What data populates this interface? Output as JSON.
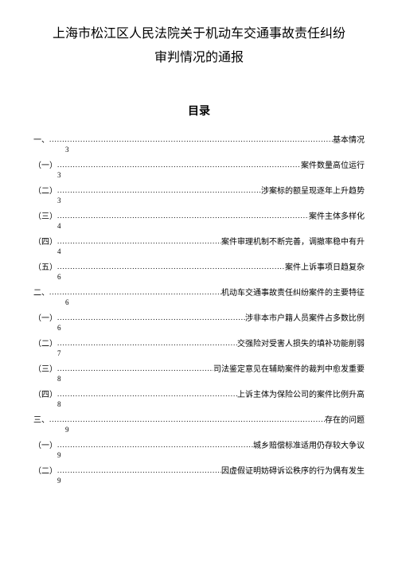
{
  "title_line1": "上海市松江区人民法院关于机动车交通事故责任纠纷",
  "title_line2": "审判情况的通报",
  "toc_heading": "目录",
  "sections": [
    {
      "num": "一、",
      "label": "基本情况",
      "page": "3",
      "level": 1
    },
    {
      "num": "（一）",
      "label": "案件数量高位运行",
      "page": "3",
      "level": 2
    },
    {
      "num": "（二）",
      "label": "涉案标的额呈现逐年上升趋势",
      "page": "3",
      "level": 2
    },
    {
      "num": "（三）",
      "label": "案件主体多样化",
      "page": "4",
      "level": 2
    },
    {
      "num": "（四）",
      "label": "案件审理机制不断完善，调撤率稳中有升",
      "page": "4",
      "level": 2
    },
    {
      "num": "（五）",
      "label": "案件上诉事项日趋复杂",
      "page": "6",
      "level": 2
    },
    {
      "num": "二、",
      "label": "机动车交通事故责任纠纷案件的主要特征",
      "page": "6",
      "level": 1
    },
    {
      "num": "（一）",
      "label": "涉非本市户籍人员案件占多数比例",
      "page": "6",
      "level": 2
    },
    {
      "num": "（二）",
      "label": "交强险对受害人损失的填补功能削弱",
      "page": "7",
      "level": 2
    },
    {
      "num": "（三）",
      "label": "司法鉴定意见在辅助案件的裁判中愈发重要",
      "page": "8",
      "level": 2
    },
    {
      "num": "（四）",
      "label": "上诉主体为保险公司的案件比例升高",
      "page": "8",
      "level": 2
    },
    {
      "num": "三、",
      "label": "存在的问题",
      "page": "9",
      "level": 1
    },
    {
      "num": "（一）",
      "label": "城乡赔偿标准适用仍存较大争议",
      "page": "9",
      "level": 2
    },
    {
      "num": "（二）",
      "label": "因虚假证明妨碍诉讼秩序的行为偶有发生",
      "page": "9",
      "level": 2
    }
  ]
}
